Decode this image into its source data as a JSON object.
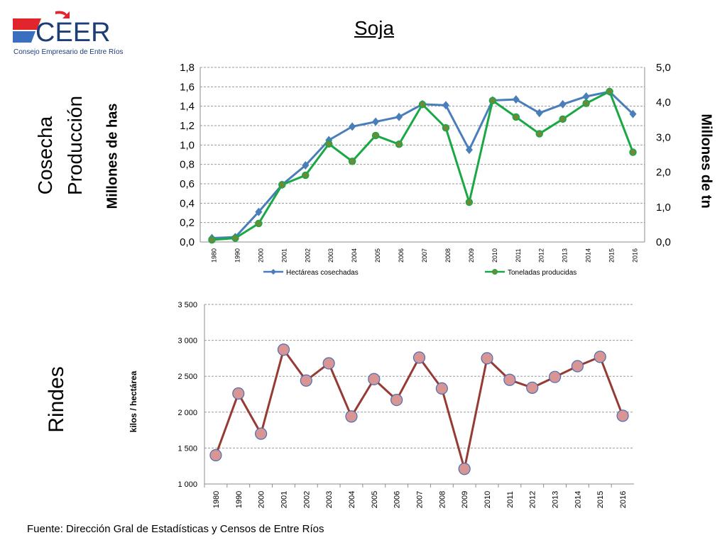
{
  "header": {
    "logo_text": "CEER",
    "logo_subtitle": "Consejo Empresario de Entre Ríos",
    "title": "Soja"
  },
  "side_labels": {
    "cosecha": "Cosecha",
    "produccion": "Producción",
    "rindes": "Rindes"
  },
  "footer": {
    "source": "Fuente: Dirección Gral de Estadísticas y Censos de Entre Ríos"
  },
  "colors": {
    "hectareas": "#4a7ebb",
    "toneladas": "#1aa845",
    "toneladas_marker": "#6b8a3a",
    "rindes_line": "#963a34",
    "rindes_marker_fill": "#d99594",
    "rindes_marker_stroke": "#4a6fb4",
    "logo_red": "#e0262c",
    "logo_blue": "#3a6fc0"
  },
  "chart_data": [
    {
      "type": "line",
      "title": "",
      "categories": [
        "1980",
        "1990",
        "2000",
        "2001",
        "2002",
        "2003",
        "2004",
        "2005",
        "2006",
        "2007",
        "2008",
        "2009",
        "2010",
        "2011",
        "2012",
        "2013",
        "2014",
        "2015",
        "2016"
      ],
      "ylabel": "Millones de has",
      "ylabel_right": "Millones de tn",
      "ylim": [
        0,
        1.8
      ],
      "ylim_right": [
        0,
        5
      ],
      "yticks": [
        "0,0",
        "0,2",
        "0,4",
        "0,6",
        "0,8",
        "1,0",
        "1,2",
        "1,4",
        "1,6",
        "1,8"
      ],
      "yticks_right": [
        "0,0",
        "1,0",
        "2,0",
        "3,0",
        "4,0",
        "5,0"
      ],
      "grid": true,
      "legend": "bottom",
      "series": [
        {
          "name": "Hectáreas cosechadas",
          "axis": "left",
          "marker": "diamond",
          "values": [
            0.04,
            0.05,
            0.31,
            0.59,
            0.79,
            1.05,
            1.19,
            1.24,
            1.29,
            1.42,
            1.41,
            0.95,
            1.46,
            1.47,
            1.33,
            1.42,
            1.5,
            1.55,
            1.32
          ]
        },
        {
          "name": "Toneladas producidas",
          "axis": "right",
          "marker": "circle",
          "values": [
            0.06,
            0.11,
            0.53,
            1.64,
            1.91,
            2.81,
            2.31,
            3.05,
            2.8,
            3.94,
            3.27,
            1.14,
            4.05,
            3.58,
            3.1,
            3.52,
            3.97,
            4.31,
            2.57
          ]
        }
      ]
    },
    {
      "type": "line",
      "title": "",
      "categories": [
        "1980",
        "1990",
        "2000",
        "2001",
        "2002",
        "2003",
        "2004",
        "2005",
        "2006",
        "2007",
        "2008",
        "2009",
        "2010",
        "2011",
        "2012",
        "2013",
        "2014",
        "2015",
        "2016"
      ],
      "ylabel": "kilos / hectárea",
      "ylim": [
        1000,
        3500
      ],
      "yticks": [
        "1 000",
        "1 500",
        "2 000",
        "2 500",
        "3 000",
        "3 500"
      ],
      "grid": true,
      "series": [
        {
          "marker": "circle",
          "values": [
            1400,
            2260,
            1700,
            2870,
            2440,
            2680,
            1940,
            2460,
            2170,
            2760,
            2330,
            1210,
            2750,
            2450,
            2340,
            2490,
            2640,
            2770,
            1950
          ]
        }
      ]
    }
  ]
}
